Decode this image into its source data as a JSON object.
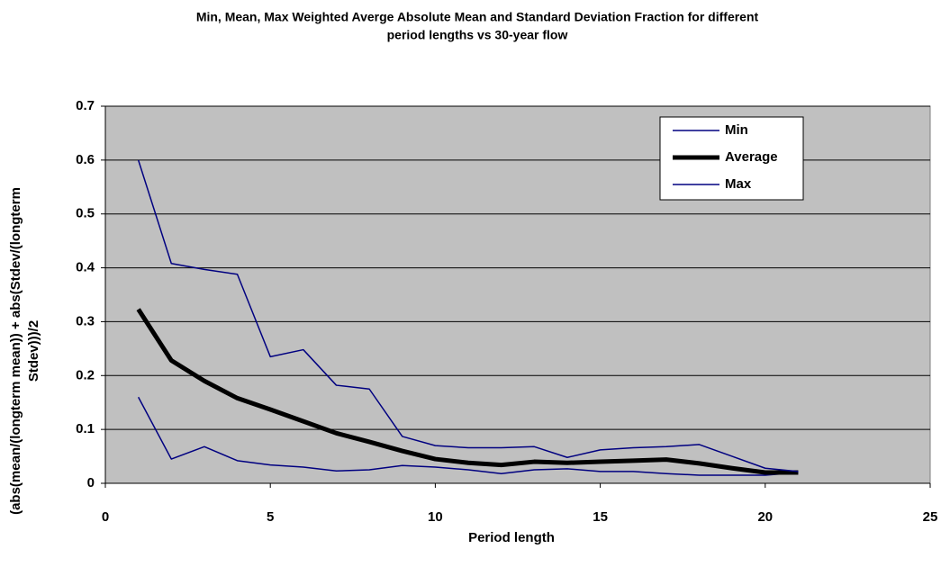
{
  "chart_data": {
    "type": "line",
    "title": [
      "Min, Mean, Max Weighted Averge Absolute Mean and Standard Deviation Fraction for different",
      "period lengths vs 30-year flow"
    ],
    "x_label": "Period length",
    "y_label": [
      "(abs(mean/(longterm  mean))  + abs(Stdev/(longterm",
      "Stdev)))/2"
    ],
    "x": [
      1,
      2,
      3,
      4,
      5,
      6,
      7,
      8,
      9,
      10,
      11,
      12,
      13,
      14,
      15,
      16,
      17,
      18,
      19,
      20,
      21
    ],
    "series": [
      {
        "name": "Min",
        "color": "#000080",
        "width": 1.5,
        "values": [
          0.16,
          0.045,
          0.068,
          0.042,
          0.034,
          0.03,
          0.023,
          0.025,
          0.033,
          0.03,
          0.025,
          0.018,
          0.025,
          0.027,
          0.022,
          0.022,
          0.018,
          0.015,
          0.015,
          0.015,
          0.02
        ]
      },
      {
        "name": "Average",
        "color": "#000000",
        "width": 5,
        "values": [
          0.323,
          0.228,
          0.19,
          0.158,
          0.137,
          0.115,
          0.093,
          0.077,
          0.06,
          0.045,
          0.038,
          0.034,
          0.04,
          0.038,
          0.04,
          0.042,
          0.044,
          0.037,
          0.028,
          0.02,
          0.02
        ]
      },
      {
        "name": "Max",
        "color": "#000080",
        "width": 1.5,
        "values": [
          0.6,
          0.408,
          0.397,
          0.388,
          0.235,
          0.248,
          0.182,
          0.175,
          0.087,
          0.07,
          0.066,
          0.066,
          0.068,
          0.048,
          0.062,
          0.066,
          0.068,
          0.072,
          0.05,
          0.028,
          0.022
        ]
      }
    ],
    "xlim": [
      0,
      25
    ],
    "xticks": [
      0,
      5,
      10,
      15,
      20,
      25
    ],
    "ylim": [
      0,
      0.7
    ],
    "yticks": [
      0,
      0.1,
      0.2,
      0.3,
      0.4,
      0.5,
      0.6,
      0.7
    ],
    "grid": true,
    "legend": "upper-right"
  }
}
